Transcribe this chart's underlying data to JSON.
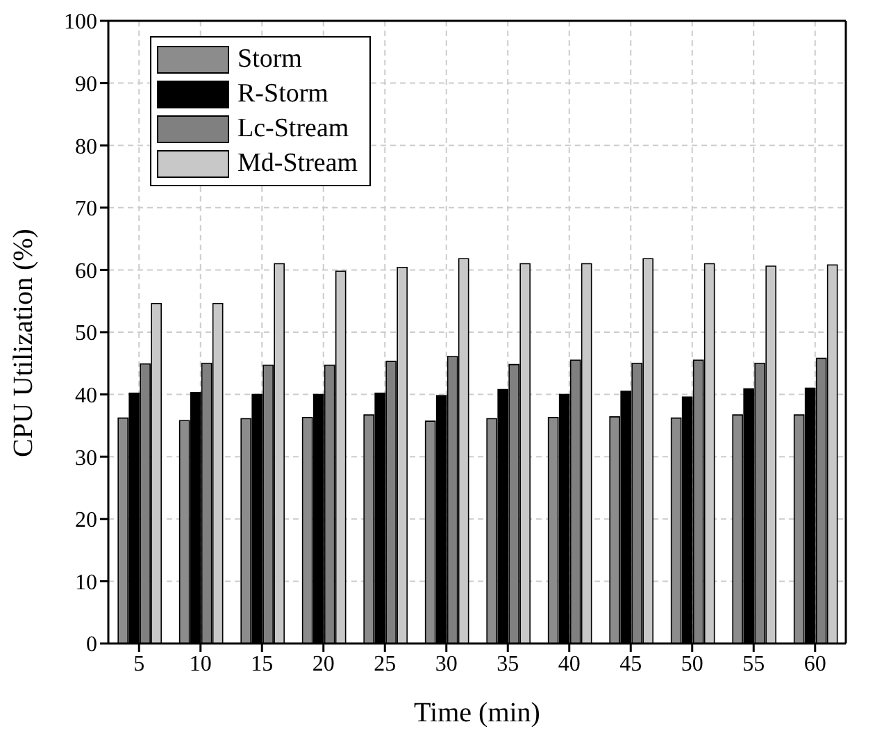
{
  "chart_data": {
    "type": "bar",
    "xlabel": "Time (min)",
    "ylabel": "CPU Utilization (%)",
    "categories": [
      "5",
      "10",
      "15",
      "20",
      "25",
      "30",
      "35",
      "40",
      "45",
      "50",
      "55",
      "60"
    ],
    "series": [
      {
        "name": "Storm",
        "color": "#8c8c8c",
        "values": [
          36.2,
          35.8,
          36.1,
          36.3,
          36.7,
          35.7,
          36.1,
          36.3,
          36.4,
          36.2,
          36.7,
          36.7
        ]
      },
      {
        "name": "R-Storm",
        "color": "#000000",
        "values": [
          40.2,
          40.3,
          40.0,
          40.0,
          40.2,
          39.8,
          40.8,
          40.0,
          40.5,
          39.6,
          40.9,
          41.0
        ]
      },
      {
        "name": "Lc-Stream",
        "color": "#808080",
        "values": [
          44.9,
          45.0,
          44.7,
          44.7,
          45.3,
          46.1,
          44.8,
          45.5,
          45.0,
          45.5,
          45.0,
          45.8
        ]
      },
      {
        "name": "Md-Stream",
        "color": "#c8c8c8",
        "values": [
          54.6,
          54.6,
          61.0,
          59.8,
          60.4,
          61.8,
          61.0,
          61.0,
          61.8,
          61.0,
          60.6,
          60.8
        ]
      }
    ],
    "ylim": [
      0,
      100
    ],
    "yticks": [
      0,
      10,
      20,
      30,
      40,
      50,
      60,
      70,
      80,
      90,
      100
    ],
    "grid": true,
    "legend": "top left"
  }
}
